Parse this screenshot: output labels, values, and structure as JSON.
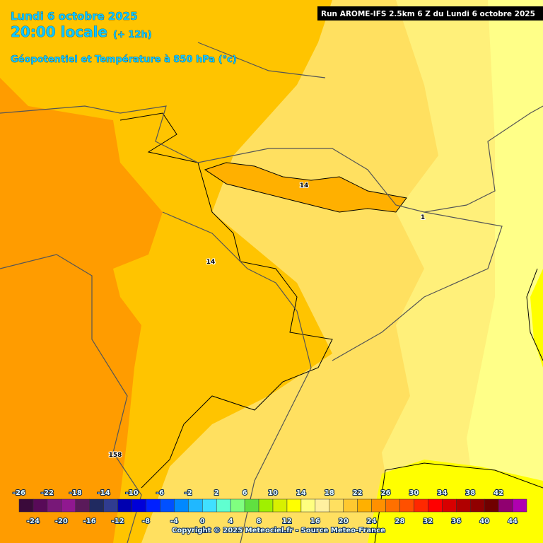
{
  "header": {
    "date": "Lundi 6 octobre 2025",
    "time": "20:00 locale",
    "offset": "(+ 12h)",
    "field": "Géopotentiel et Température à 850 hPa (°c)"
  },
  "run_info": "Run AROME-IFS 2.5km 6 Z du Lundi 6 octobre 2025",
  "contour_labels": [
    14,
    14,
    158,
    1
  ],
  "color_scale": {
    "ticks_top": [
      -26,
      -22,
      -18,
      -14,
      -10,
      -6,
      -2,
      2,
      6,
      10,
      14,
      18,
      22,
      26,
      30,
      34,
      38,
      42
    ],
    "ticks_bottom": [
      -24,
      -20,
      -16,
      -12,
      -8,
      -4,
      0,
      4,
      8,
      12,
      16,
      20,
      24,
      28,
      32,
      36,
      40,
      44
    ],
    "colors": [
      "#3a0a3a",
      "#580a58",
      "#781878",
      "#901890",
      "#5a1a5a",
      "#202a60",
      "#303c90",
      "#0000b0",
      "#0000d8",
      "#0020ff",
      "#0050ff",
      "#0088ff",
      "#20b8ff",
      "#40e0ff",
      "#60ffd0",
      "#80ff80",
      "#60e040",
      "#a0f000",
      "#d8f000",
      "#ffff00",
      "#ffff80",
      "#fff0a0",
      "#ffe060",
      "#ffc830",
      "#ffb000",
      "#ff9000",
      "#ff7000",
      "#ff5000",
      "#ff2800",
      "#ff0000",
      "#d80000",
      "#b00000",
      "#900000",
      "#700000",
      "#900070",
      "#b000b0"
    ]
  },
  "copyright": "Copyright © 2025 Meteociel.fr - Source Meteo-France"
}
